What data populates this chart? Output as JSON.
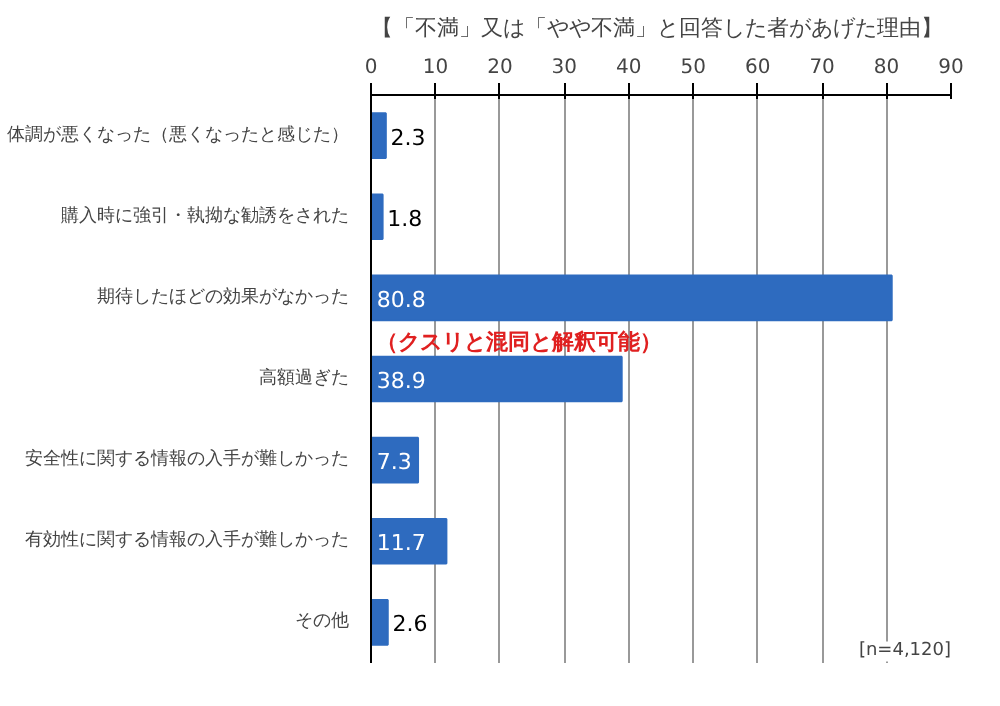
{
  "chart_data": {
    "type": "bar",
    "orientation": "horizontal",
    "title": "【「不満」又は「やや不満」と回答した者があげた理由】",
    "categories": [
      "体調が悪くなった（悪くなったと感じた）",
      "購入時に強引・執拗な勧誘をされた",
      "期待したほどの効果がなかった",
      "高額過ぎた",
      "安全性に関する情報の入手が難しかった",
      "有効性に関する情報の入手が難しかった",
      "その他"
    ],
    "values": [
      2.3,
      1.8,
      80.8,
      38.9,
      7.3,
      11.7,
      2.6
    ],
    "color": "#2e6bbf",
    "xlim": [
      0,
      90
    ],
    "xticks": [
      0,
      10,
      20,
      30,
      40,
      50,
      60,
      70,
      80,
      90
    ],
    "grid": "x",
    "data_labels": true,
    "annotations": [
      "（クスリと混同と解釈可能）",
      "[n=4,120]"
    ]
  }
}
